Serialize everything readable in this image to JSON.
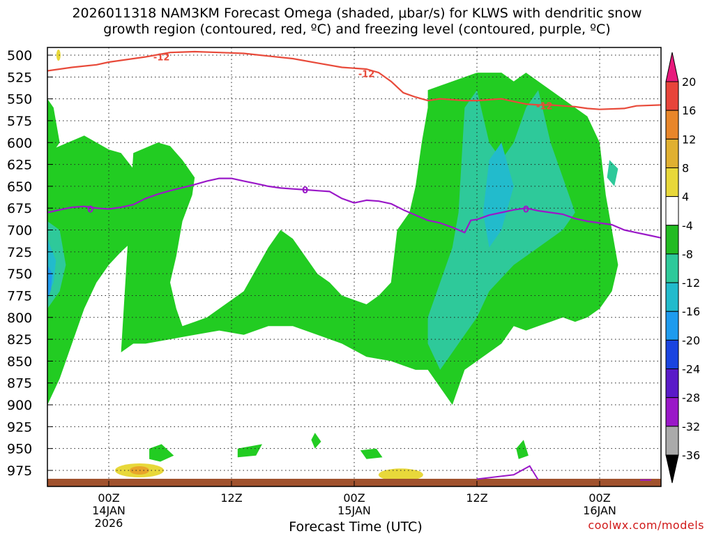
{
  "title": {
    "line1": "2026011318 NAM3KM Forecast Omega (shaded, μbar/s) for KLWS with dendritic snow",
    "line2": "growth region (contoured, red, ºC) and freezing level (contoured, purple, ºC)"
  },
  "credit": "coolwx.com/models",
  "chart_data": {
    "type": "contour",
    "title": "2026011318 NAM3KM Forecast Omega (shaded, μbar/s) for KLWS with dendritic snow growth region (contoured, red, ºC) and freezing level (contoured, purple, ºC)",
    "xlabel": "Forecast Time (UTC)",
    "ylabel": "",
    "y_ticks": [
      "500",
      "525",
      "550",
      "575",
      "600",
      "625",
      "650",
      "675",
      "700",
      "725",
      "750",
      "775",
      "800",
      "825",
      "850",
      "875",
      "900",
      "925",
      "950",
      "975"
    ],
    "y_range": [
      500,
      990
    ],
    "x_range_hours": [
      -5,
      45
    ],
    "grid": true,
    "x_ticks": [
      {
        "hour": 0,
        "label": "00Z",
        "sub1": "14JAN",
        "sub2": "2026"
      },
      {
        "hour": 10,
        "label": "12Z",
        "sub1": "",
        "sub2": ""
      },
      {
        "hour": 20,
        "label": "00Z",
        "sub1": "15JAN",
        "sub2": ""
      },
      {
        "hour": 30,
        "label": "12Z",
        "sub1": "",
        "sub2": ""
      },
      {
        "hour": 40,
        "label": "00Z",
        "sub1": "16JAN",
        "sub2": ""
      }
    ],
    "colorbar": {
      "labels": [
        "20",
        "16",
        "12",
        "8",
        "4",
        "-4",
        "-8",
        "-12",
        "-16",
        "-20",
        "-24",
        "-28",
        "-32",
        "-36"
      ],
      "colors": [
        "#e8197c",
        "#e8443a",
        "#e8862a",
        "#e0b030",
        "#e8d83a",
        "#ffffff",
        "#22bb22",
        "#2ec99a",
        "#22bbcc",
        "#1e9bee",
        "#1a44e0",
        "#5a1ac8",
        "#9a18c8",
        "#aaaaaa",
        "#000000"
      ]
    },
    "series": [
      {
        "name": "-12",
        "color": "#e84a3a",
        "points": [
          [
            -5,
            518
          ],
          [
            -3,
            514
          ],
          [
            -1,
            511
          ],
          [
            0,
            508
          ],
          [
            1,
            506
          ],
          [
            2,
            504
          ],
          [
            3,
            502
          ],
          [
            5,
            497
          ],
          [
            7,
            496
          ],
          [
            9,
            497
          ],
          [
            11,
            498
          ],
          [
            13,
            501
          ],
          [
            15,
            504
          ],
          [
            17,
            509
          ],
          [
            19,
            514
          ],
          [
            21,
            516
          ],
          [
            22,
            520
          ],
          [
            23,
            530
          ],
          [
            24,
            543
          ],
          [
            25,
            548
          ],
          [
            26,
            552
          ],
          [
            27,
            550
          ],
          [
            28,
            551
          ],
          [
            29,
            552
          ],
          [
            30,
            552
          ],
          [
            31,
            551
          ],
          [
            32,
            550
          ],
          [
            33,
            553
          ],
          [
            34,
            556
          ],
          [
            35,
            557
          ],
          [
            36,
            557
          ],
          [
            37,
            558
          ],
          [
            38,
            559
          ],
          [
            39,
            561
          ],
          [
            40,
            562
          ],
          [
            42,
            561
          ],
          [
            43,
            558
          ],
          [
            45,
            557
          ]
        ]
      },
      {
        "name": "0",
        "color": "#9a18c8",
        "points": [
          [
            -5,
            680
          ],
          [
            -4,
            677
          ],
          [
            -3,
            674
          ],
          [
            -2,
            673
          ],
          [
            -1,
            675
          ],
          [
            0,
            676
          ],
          [
            1,
            674
          ],
          [
            2,
            671
          ],
          [
            3,
            664
          ],
          [
            4,
            659
          ],
          [
            5,
            655
          ],
          [
            7,
            648
          ],
          [
            8,
            644
          ],
          [
            9,
            641
          ],
          [
            10,
            641
          ],
          [
            11,
            644
          ],
          [
            12,
            647
          ],
          [
            13,
            650
          ],
          [
            14,
            652
          ],
          [
            15,
            653
          ],
          [
            16,
            654
          ],
          [
            17,
            655
          ],
          [
            18,
            656
          ],
          [
            19,
            664
          ],
          [
            20,
            669
          ],
          [
            21,
            666
          ],
          [
            22,
            667
          ],
          [
            23,
            670
          ],
          [
            24,
            677
          ],
          [
            25,
            683
          ],
          [
            26,
            689
          ],
          [
            27,
            692
          ],
          [
            28,
            697
          ],
          [
            29,
            703
          ],
          [
            29.5,
            689
          ],
          [
            30,
            688
          ],
          [
            31,
            683
          ],
          [
            32,
            680
          ],
          [
            33,
            677
          ],
          [
            34,
            675
          ],
          [
            35,
            678
          ],
          [
            36,
            680
          ],
          [
            37,
            682
          ],
          [
            38,
            687
          ],
          [
            39,
            690
          ],
          [
            40,
            692
          ],
          [
            41,
            694
          ],
          [
            42,
            700
          ],
          [
            43,
            703
          ],
          [
            44,
            706
          ],
          [
            45,
            709
          ]
        ]
      }
    ],
    "contour_labels": [
      {
        "text": "-12",
        "hour": 4.3,
        "pres": 502,
        "color": "#e84a3a"
      },
      {
        "text": "-12",
        "hour": 21,
        "pres": 521,
        "color": "#e84a3a"
      },
      {
        "text": "-12",
        "hour": 35.5,
        "pres": 558,
        "color": "#e84a3a"
      },
      {
        "text": "0",
        "hour": 16,
        "pres": 654,
        "color": "#9a18c8"
      },
      {
        "text": "0",
        "hour": 34,
        "pres": 676,
        "color": "#9a18c8"
      },
      {
        "text": "0",
        "hour": -1.5,
        "pres": 676,
        "color": "#9a18c8"
      }
    ],
    "shaded_regions": [
      {
        "level": "-4",
        "color": "#22cc22",
        "polys": [
          [
            [
              -5,
              610
            ],
            [
              -3,
              598
            ],
            [
              -2,
              592
            ],
            [
              -1,
              600
            ],
            [
              0,
              608
            ],
            [
              1,
              612
            ],
            [
              2,
              630
            ],
            [
              3,
              650
            ],
            [
              4,
              672
            ],
            [
              4,
              700
            ],
            [
              3,
              708
            ],
            [
              2,
              712
            ],
            [
              1,
              725
            ],
            [
              0,
              740
            ],
            [
              -1,
              760
            ],
            [
              -2,
              790
            ],
            [
              -3,
              830
            ],
            [
              -4,
              870
            ],
            [
              -5,
              900
            ]
          ],
          [
            [
              -5,
              550
            ],
            [
              -4.5,
              560
            ],
            [
              -4,
              600
            ],
            [
              -5,
              620
            ]
          ],
          [
            [
              2,
              612
            ],
            [
              3,
              606
            ],
            [
              4,
              600
            ],
            [
              5,
              604
            ],
            [
              6,
              620
            ],
            [
              7,
              640
            ],
            [
              6.8,
              660
            ],
            [
              6,
              690
            ],
            [
              5.5,
              730
            ],
            [
              5,
              760
            ],
            [
              5.5,
              790
            ],
            [
              6,
              810
            ],
            [
              7,
              805
            ],
            [
              8,
              800
            ],
            [
              9,
              790
            ],
            [
              10,
              780
            ],
            [
              11,
              770
            ],
            [
              12,
              745
            ],
            [
              13,
              720
            ],
            [
              14,
              700
            ],
            [
              15,
              710
            ],
            [
              16,
              730
            ],
            [
              17,
              750
            ],
            [
              18,
              760
            ],
            [
              19,
              775
            ],
            [
              20,
              780
            ],
            [
              21,
              785
            ],
            [
              22,
              775
            ],
            [
              23,
              760
            ],
            [
              23.5,
              700
            ],
            [
              24.5,
              680
            ],
            [
              25,
              650
            ],
            [
              25.5,
              600
            ],
            [
              26,
              560
            ],
            [
              26,
              540
            ],
            [
              30,
              520
            ],
            [
              32,
              520
            ],
            [
              33,
              530
            ],
            [
              34,
              520
            ],
            [
              35,
              530
            ],
            [
              36,
              540
            ],
            [
              37,
              550
            ],
            [
              38,
              560
            ],
            [
              39,
              570
            ],
            [
              40,
              600
            ],
            [
              40.5,
              660
            ],
            [
              41,
              700
            ],
            [
              41.5,
              740
            ],
            [
              41,
              770
            ],
            [
              40,
              790
            ],
            [
              39,
              800
            ],
            [
              38,
              805
            ],
            [
              37,
              800
            ],
            [
              36,
              805
            ],
            [
              35,
              810
            ],
            [
              34,
              815
            ],
            [
              33,
              810
            ],
            [
              32,
              830
            ],
            [
              31,
              840
            ],
            [
              30,
              850
            ],
            [
              29,
              860
            ],
            [
              28,
              900
            ],
            [
              27,
              880
            ],
            [
              26,
              860
            ],
            [
              25,
              860
            ],
            [
              24,
              855
            ],
            [
              23,
              850
            ],
            [
              21,
              845
            ],
            [
              19,
              830
            ],
            [
              17,
              820
            ],
            [
              15,
              810
            ],
            [
              13,
              810
            ],
            [
              11,
              820
            ],
            [
              9,
              815
            ],
            [
              7,
              820
            ],
            [
              5,
              825
            ],
            [
              3,
              830
            ],
            [
              2,
              830
            ],
            [
              1,
              840
            ]
          ]
        ]
      }
    ]
  }
}
